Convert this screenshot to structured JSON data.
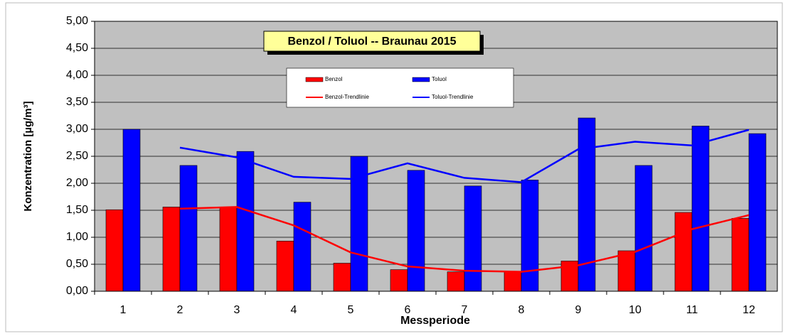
{
  "chart_data": {
    "type": "bar",
    "title": "Benzol / Toluol -- Braunau 2015",
    "x_label": "Messperiode",
    "y_label": "Konzentration [µg/m³]",
    "categories": [
      "1",
      "2",
      "3",
      "4",
      "5",
      "6",
      "7",
      "8",
      "9",
      "10",
      "11",
      "12"
    ],
    "series": [
      {
        "name": "Benzol",
        "type": "bar",
        "color": "#ff0000",
        "values": [
          1.51,
          1.56,
          1.55,
          0.93,
          0.52,
          0.4,
          0.36,
          0.36,
          0.56,
          0.75,
          1.46,
          1.35
        ]
      },
      {
        "name": "Toluol",
        "type": "bar",
        "color": "#0000ff",
        "values": [
          3.0,
          2.33,
          2.59,
          1.65,
          2.5,
          2.24,
          1.95,
          2.06,
          3.21,
          2.33,
          3.06,
          2.92
        ]
      },
      {
        "name": "Benzol-Trendlinie",
        "type": "line",
        "color": "#ff0000",
        "values": [
          null,
          1.53,
          1.56,
          1.22,
          0.72,
          0.46,
          0.38,
          0.36,
          0.48,
          0.73,
          1.15,
          1.41
        ]
      },
      {
        "name": "Toluol-Trendlinie",
        "type": "line",
        "color": "#0000ff",
        "values": [
          null,
          2.66,
          2.48,
          2.12,
          2.08,
          2.37,
          2.1,
          2.02,
          2.63,
          2.77,
          2.7,
          2.99
        ]
      }
    ],
    "ylim": [
      0,
      5
    ],
    "yticks": [
      {
        "value": 0,
        "label": "0,00"
      },
      {
        "value": 0.5,
        "label": "0,50"
      },
      {
        "value": 1,
        "label": "1,00"
      },
      {
        "value": 1.5,
        "label": "1,50"
      },
      {
        "value": 2,
        "label": "2,00"
      },
      {
        "value": 2.5,
        "label": "2,50"
      },
      {
        "value": 3,
        "label": "3,00"
      },
      {
        "value": 3.5,
        "label": "3,50"
      },
      {
        "value": 4,
        "label": "4,00"
      },
      {
        "value": 4.5,
        "label": "4,50"
      },
      {
        "value": 5,
        "label": "5,00"
      }
    ],
    "grid": true,
    "background": "#c0c0c0"
  }
}
